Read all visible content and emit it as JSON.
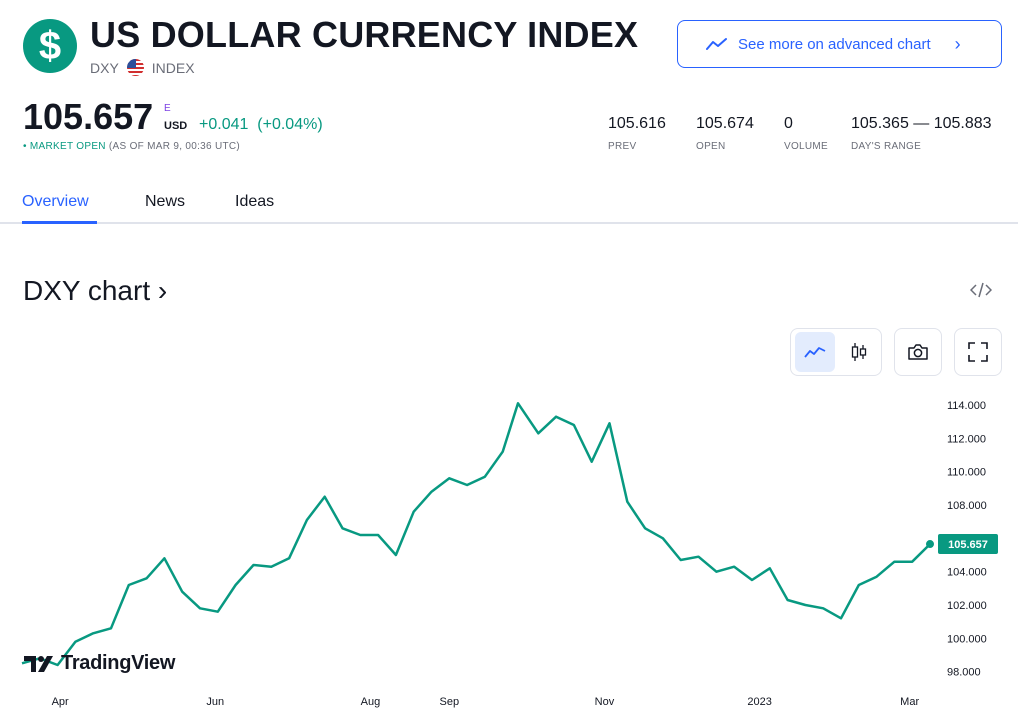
{
  "header": {
    "title": "US DOLLAR CURRENCY INDEX",
    "symbol": "DXY",
    "type": "INDEX",
    "logo_glyph": "$",
    "logo_color": "#089981",
    "advanced_chart_label": "See more on advanced chart"
  },
  "quote": {
    "price": "105.657",
    "price_marker": "E",
    "currency": "USD",
    "change": "+0.041",
    "change_pct": "(+0.04%)",
    "status_label": "MARKET OPEN",
    "status_time": "(AS OF MAR 9, 00:36 UTC)",
    "up_color": "#089981"
  },
  "stats": [
    {
      "value": "105.616",
      "label": "PREV"
    },
    {
      "value": "105.674",
      "label": "OPEN"
    },
    {
      "value": "0",
      "label": "VOLUME"
    },
    {
      "value": "105.365 — 105.883",
      "label": "DAY'S RANGE"
    }
  ],
  "tabs": [
    {
      "label": "Overview",
      "active": true
    },
    {
      "label": "News",
      "active": false
    },
    {
      "label": "Ideas",
      "active": false
    }
  ],
  "chart_section": {
    "title": "DXY chart ›",
    "embed_icon": "code-icon",
    "tools": [
      "line-chart-icon",
      "candles-icon",
      "camera-icon",
      "fullscreen-icon"
    ],
    "brand": "TradingView"
  },
  "chart_data": {
    "type": "line",
    "x_labels": [
      "Apr",
      "Jun",
      "Aug",
      "Sep",
      "Nov",
      "2023",
      "Mar"
    ],
    "ylim": [
      97.2,
      114.6
    ],
    "y_ticks": [
      "114.000",
      "112.000",
      "110.000",
      "108.000",
      "106.000",
      "104.000",
      "102.000",
      "100.000",
      "98.000"
    ],
    "last_value": "105.657",
    "line_color": "#089981",
    "series": [
      {
        "x": [
          "2022-03-17",
          "2022-03-24",
          "2022-03-31",
          "2022-04-07",
          "2022-04-14",
          "2022-04-21",
          "2022-04-28",
          "2022-05-05",
          "2022-05-12",
          "2022-05-19",
          "2022-05-26",
          "2022-06-02",
          "2022-06-09",
          "2022-06-16",
          "2022-06-23",
          "2022-06-30",
          "2022-07-07",
          "2022-07-14",
          "2022-07-21",
          "2022-07-28",
          "2022-08-04",
          "2022-08-11",
          "2022-08-18",
          "2022-08-25",
          "2022-09-01",
          "2022-09-08",
          "2022-09-15",
          "2022-09-22",
          "2022-09-28",
          "2022-10-06",
          "2022-10-13",
          "2022-10-20",
          "2022-10-27",
          "2022-11-03",
          "2022-11-10",
          "2022-11-17",
          "2022-11-24",
          "2022-12-01",
          "2022-12-08",
          "2022-12-15",
          "2022-12-22",
          "2022-12-29",
          "2023-01-05",
          "2023-01-12",
          "2023-01-19",
          "2023-01-26",
          "2023-02-02",
          "2023-02-09",
          "2023-02-16",
          "2023-02-23",
          "2023-03-02",
          "2023-03-09"
        ],
        "values": [
          98.5,
          98.8,
          98.4,
          99.8,
          100.3,
          100.6,
          103.2,
          103.6,
          104.8,
          102.8,
          101.8,
          101.6,
          103.2,
          104.4,
          104.3,
          104.8,
          107.1,
          108.5,
          106.6,
          106.2,
          106.2,
          105.0,
          107.6,
          108.8,
          109.6,
          109.2,
          109.7,
          111.2,
          114.1,
          112.3,
          113.3,
          112.8,
          110.6,
          112.9,
          108.2,
          106.6,
          106.0,
          104.7,
          104.9,
          104.0,
          104.3,
          103.5,
          104.2,
          102.3,
          102.0,
          101.8,
          101.2,
          103.2,
          103.7,
          104.6,
          104.6,
          105.657
        ]
      }
    ]
  }
}
